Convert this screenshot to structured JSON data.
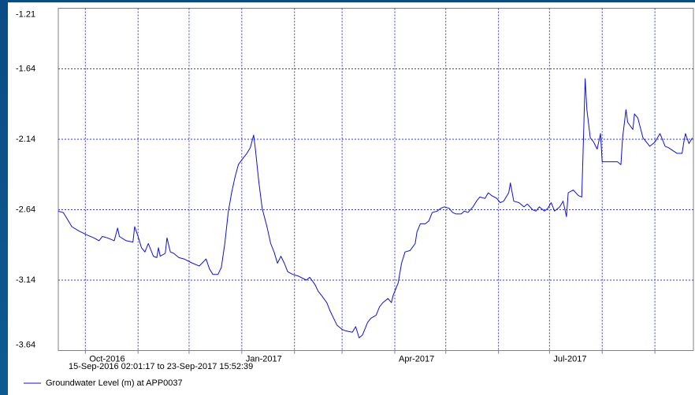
{
  "chart_data": {
    "type": "line",
    "subtitle": "15-Sep-2016 02:01:17 to 23-Sep-2017 15:52:39",
    "xlim": [
      "2016-09-15T02:01:17",
      "2017-09-23T15:52:39"
    ],
    "xticks": [
      {
        "value": "2016-10-01",
        "label": "Oct-2016"
      },
      {
        "value": "2016-11-01",
        "label": null
      },
      {
        "value": "2016-12-01",
        "label": null
      },
      {
        "value": "2017-01-01",
        "label": "Jan-2017"
      },
      {
        "value": "2017-02-01",
        "label": null
      },
      {
        "value": "2017-03-01",
        "label": null
      },
      {
        "value": "2017-04-01",
        "label": "Apr-2017"
      },
      {
        "value": "2017-05-01",
        "label": null
      },
      {
        "value": "2017-06-01",
        "label": null
      },
      {
        "value": "2017-07-01",
        "label": "Jul-2017"
      },
      {
        "value": "2017-08-01",
        "label": null
      },
      {
        "value": "2017-09-01",
        "label": null
      }
    ],
    "ylim": [
      -3.64,
      -1.21
    ],
    "yticks": [
      -1.21,
      -1.64,
      -2.14,
      -2.64,
      -3.14,
      -3.64
    ],
    "grid": true,
    "grid_color": "#3a3ad8",
    "x": [
      "2016-09-15",
      "2016-09-18",
      "2016-09-21",
      "2016-09-23",
      "2016-09-27",
      "2016-10-02",
      "2016-10-06",
      "2016-10-09",
      "2016-10-11",
      "2016-10-14",
      "2016-10-18",
      "2016-10-20",
      "2016-10-21",
      "2016-10-25",
      "2016-10-29",
      "2016-10-30",
      "2016-11-01",
      "2016-11-03",
      "2016-11-05",
      "2016-11-07",
      "2016-11-10",
      "2016-11-12",
      "2016-11-13",
      "2016-11-14",
      "2016-11-17",
      "2016-11-18",
      "2016-11-20",
      "2016-11-22",
      "2016-11-25",
      "2016-11-28",
      "2016-12-03",
      "2016-12-07",
      "2016-12-11",
      "2016-12-13",
      "2016-12-15",
      "2016-12-18",
      "2016-12-20",
      "2016-12-22",
      "2016-12-24",
      "2016-12-26",
      "2016-12-28",
      "2016-12-30",
      "2017-01-02",
      "2017-01-04",
      "2017-01-06",
      "2017-01-08",
      "2017-01-09",
      "2017-01-11",
      "2017-01-13",
      "2017-01-16",
      "2017-01-18",
      "2017-01-20",
      "2017-01-22",
      "2017-01-24",
      "2017-01-26",
      "2017-01-28",
      "2017-01-31",
      "2017-02-03",
      "2017-02-08",
      "2017-02-10",
      "2017-02-13",
      "2017-02-15",
      "2017-02-17",
      "2017-02-20",
      "2017-02-22",
      "2017-02-24",
      "2017-02-26",
      "2017-03-01",
      "2017-03-03",
      "2017-03-07",
      "2017-03-09",
      "2017-03-11",
      "2017-03-13",
      "2017-03-16",
      "2017-03-18",
      "2017-03-21",
      "2017-03-23",
      "2017-03-25",
      "2017-03-28",
      "2017-03-30",
      "2017-03-31",
      "2017-04-03",
      "2017-04-05",
      "2017-04-07",
      "2017-04-10",
      "2017-04-13",
      "2017-04-14",
      "2017-04-16",
      "2017-04-19",
      "2017-04-21",
      "2017-04-23",
      "2017-04-26",
      "2017-04-28",
      "2017-04-30",
      "2017-05-03",
      "2017-05-05",
      "2017-05-07",
      "2017-05-10",
      "2017-05-12",
      "2017-05-14",
      "2017-05-17",
      "2017-05-19",
      "2017-05-21",
      "2017-05-24",
      "2017-05-26",
      "2017-05-28",
      "2017-05-31",
      "2017-06-02",
      "2017-06-04",
      "2017-06-07",
      "2017-06-08",
      "2017-06-10",
      "2017-06-13",
      "2017-06-16",
      "2017-06-18",
      "2017-06-21",
      "2017-06-23",
      "2017-06-25",
      "2017-06-28",
      "2017-06-30",
      "2017-07-02",
      "2017-07-04",
      "2017-07-07",
      "2017-07-09",
      "2017-07-11",
      "2017-07-12",
      "2017-07-15",
      "2017-07-18",
      "2017-07-20",
      "2017-07-21",
      "2017-07-22",
      "2017-07-23",
      "2017-07-25",
      "2017-07-27",
      "2017-07-29",
      "2017-07-31",
      "2017-08-01",
      "2017-08-05",
      "2017-08-10",
      "2017-08-12",
      "2017-08-13",
      "2017-08-15",
      "2017-08-16",
      "2017-08-19",
      "2017-08-20",
      "2017-08-22",
      "2017-08-25",
      "2017-08-29",
      "2017-09-01",
      "2017-09-04",
      "2017-09-07",
      "2017-09-09",
      "2017-09-14",
      "2017-09-17",
      "2017-09-18",
      "2017-09-19",
      "2017-09-21",
      "2017-09-23"
    ],
    "series": [
      {
        "name": "Groundwater Level (m) at APP0037",
        "color": "#1010d0",
        "values": [
          -2.65,
          -2.66,
          -2.72,
          -2.76,
          -2.79,
          -2.82,
          -2.84,
          -2.86,
          -2.83,
          -2.84,
          -2.86,
          -2.77,
          -2.83,
          -2.86,
          -2.87,
          -2.76,
          -2.83,
          -2.91,
          -2.94,
          -2.88,
          -2.97,
          -2.98,
          -2.91,
          -2.97,
          -2.95,
          -2.84,
          -2.94,
          -2.95,
          -2.98,
          -2.99,
          -3.02,
          -3.04,
          -2.99,
          -3.06,
          -3.1,
          -3.1,
          -3.05,
          -2.88,
          -2.66,
          -2.52,
          -2.41,
          -2.32,
          -2.27,
          -2.24,
          -2.2,
          -2.11,
          -2.21,
          -2.44,
          -2.63,
          -2.77,
          -2.88,
          -2.94,
          -3.02,
          -2.97,
          -3.02,
          -3.08,
          -3.1,
          -3.11,
          -3.14,
          -3.12,
          -3.17,
          -3.22,
          -3.25,
          -3.3,
          -3.36,
          -3.41,
          -3.46,
          -3.49,
          -3.5,
          -3.51,
          -3.47,
          -3.55,
          -3.53,
          -3.44,
          -3.41,
          -3.39,
          -3.33,
          -3.3,
          -3.27,
          -3.3,
          -3.25,
          -3.16,
          -3.02,
          -2.94,
          -2.93,
          -2.88,
          -2.8,
          -2.74,
          -2.74,
          -2.72,
          -2.66,
          -2.65,
          -2.63,
          -2.62,
          -2.63,
          -2.66,
          -2.67,
          -2.67,
          -2.65,
          -2.66,
          -2.62,
          -2.58,
          -2.55,
          -2.56,
          -2.52,
          -2.54,
          -2.56,
          -2.59,
          -2.58,
          -2.52,
          -2.45,
          -2.58,
          -2.59,
          -2.62,
          -2.6,
          -2.64,
          -2.65,
          -2.62,
          -2.65,
          -2.63,
          -2.59,
          -2.65,
          -2.62,
          -2.58,
          -2.69,
          -2.52,
          -2.5,
          -2.54,
          -2.55,
          -2.13,
          -1.71,
          -1.93,
          -2.13,
          -2.16,
          -2.21,
          -2.1,
          -2.3,
          -2.3,
          -2.3,
          -2.32,
          -2.13,
          -1.93,
          -2.02,
          -2.07,
          -1.96,
          -1.99,
          -2.13,
          -2.19,
          -2.16,
          -2.1,
          -2.19,
          -2.2,
          -2.24,
          -2.24,
          -2.16,
          -2.1,
          -2.17,
          -2.13
        ]
      }
    ]
  }
}
